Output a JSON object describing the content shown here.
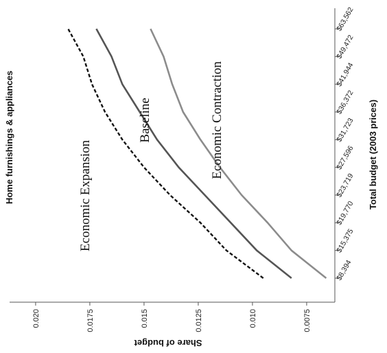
{
  "chart_data": {
    "type": "line",
    "title": "Home furnishings & appliances",
    "xlabel": "Total budget (2003 prices)",
    "ylabel": "Share of budget",
    "x_ticks": [
      "$8,394",
      "$15,375",
      "$19,770",
      "$23,719",
      "$27,596",
      "$31,723",
      "$36,372",
      "$41,944",
      "$49,472",
      "$63,562"
    ],
    "y_ticks": [
      "0.020",
      "0.0175",
      "0.015",
      "0.0125",
      "0.010",
      "0.0075"
    ],
    "ylim": [
      0.0062,
      0.0212
    ],
    "grid": false,
    "series": [
      {
        "name": "Economic Expansion",
        "style": "dashed",
        "color": "#111111",
        "values": [
          0.0095,
          0.0112,
          0.0124,
          0.0138,
          0.015,
          0.016,
          0.0168,
          0.0174,
          0.0178,
          0.0185
        ]
      },
      {
        "name": "Baseline",
        "style": "solid",
        "color": "#555555",
        "values": [
          0.0082,
          0.0098,
          0.011,
          0.0122,
          0.0134,
          0.0144,
          0.0152,
          0.016,
          0.0165,
          0.0172
        ]
      },
      {
        "name": "Economic Contraction",
        "style": "solid",
        "color": "#8c8c8c",
        "values": [
          0.0066,
          0.0082,
          0.0093,
          0.0105,
          0.0115,
          0.0124,
          0.0132,
          0.0137,
          0.0141,
          0.0147
        ]
      }
    ]
  }
}
